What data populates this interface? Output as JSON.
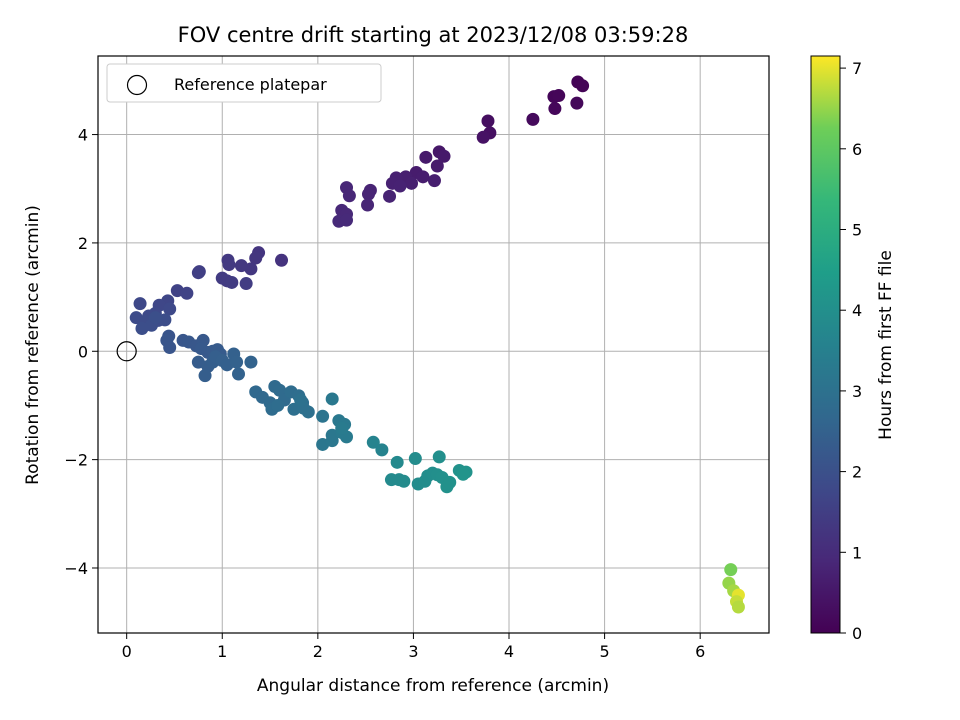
{
  "chart_data": {
    "type": "scatter",
    "title": "FOV centre drift starting at 2023/12/08 03:59:28",
    "xlabel": "Angular distance from reference (arcmin)",
    "ylabel": "Rotation from reference (arcmin)",
    "xlim": [
      -0.3,
      6.72
    ],
    "ylim": [
      -5.2,
      5.45
    ],
    "xticks": [
      0,
      1,
      2,
      3,
      4,
      5,
      6
    ],
    "yticks": [
      -4,
      -2,
      0,
      2,
      4
    ],
    "grid": true,
    "legend": {
      "placement": "top-left",
      "entries": [
        "Reference platepar"
      ]
    },
    "reference_point": {
      "x": 0,
      "y": 0,
      "marker": "open-circle"
    },
    "colorbar": {
      "label": "Hours from first FF file",
      "colormap": "viridis",
      "range": [
        0,
        7.15
      ],
      "ticks": [
        0,
        1,
        2,
        3,
        4,
        5,
        6,
        7
      ]
    },
    "points": [
      {
        "x": 4.72,
        "y": 4.97,
        "c": 0.05
      },
      {
        "x": 4.77,
        "y": 4.9,
        "c": 0.06
      },
      {
        "x": 4.47,
        "y": 4.7,
        "c": 0.1
      },
      {
        "x": 4.52,
        "y": 4.72,
        "c": 0.12
      },
      {
        "x": 4.48,
        "y": 4.48,
        "c": 0.14
      },
      {
        "x": 4.71,
        "y": 4.58,
        "c": 0.15
      },
      {
        "x": 4.25,
        "y": 4.28,
        "c": 0.2
      },
      {
        "x": 3.78,
        "y": 4.25,
        "c": 0.3
      },
      {
        "x": 3.8,
        "y": 4.03,
        "c": 0.35
      },
      {
        "x": 3.73,
        "y": 3.95,
        "c": 0.4
      },
      {
        "x": 3.27,
        "y": 3.68,
        "c": 0.5
      },
      {
        "x": 3.32,
        "y": 3.6,
        "c": 0.55
      },
      {
        "x": 3.13,
        "y": 3.58,
        "c": 0.58
      },
      {
        "x": 3.25,
        "y": 3.42,
        "c": 0.6
      },
      {
        "x": 3.03,
        "y": 3.3,
        "c": 0.62
      },
      {
        "x": 3.1,
        "y": 3.22,
        "c": 0.64
      },
      {
        "x": 3.22,
        "y": 3.15,
        "c": 0.66
      },
      {
        "x": 2.92,
        "y": 3.22,
        "c": 0.68
      },
      {
        "x": 2.98,
        "y": 3.1,
        "c": 0.7
      },
      {
        "x": 2.82,
        "y": 3.2,
        "c": 0.72
      },
      {
        "x": 2.78,
        "y": 3.1,
        "c": 0.74
      },
      {
        "x": 2.86,
        "y": 3.05,
        "c": 0.76
      },
      {
        "x": 2.75,
        "y": 2.86,
        "c": 0.78
      },
      {
        "x": 2.55,
        "y": 2.97,
        "c": 0.8
      },
      {
        "x": 2.53,
        "y": 2.9,
        "c": 0.82
      },
      {
        "x": 2.52,
        "y": 2.7,
        "c": 0.84
      },
      {
        "x": 2.3,
        "y": 3.02,
        "c": 0.86
      },
      {
        "x": 2.33,
        "y": 2.87,
        "c": 0.88
      },
      {
        "x": 2.25,
        "y": 2.6,
        "c": 0.9
      },
      {
        "x": 2.3,
        "y": 2.53,
        "c": 0.92
      },
      {
        "x": 2.22,
        "y": 2.4,
        "c": 0.94
      },
      {
        "x": 2.3,
        "y": 2.42,
        "c": 0.96
      },
      {
        "x": 1.62,
        "y": 1.68,
        "c": 1.2
      },
      {
        "x": 1.38,
        "y": 1.82,
        "c": 1.25
      },
      {
        "x": 1.35,
        "y": 1.72,
        "c": 1.28
      },
      {
        "x": 1.3,
        "y": 1.52,
        "c": 1.3
      },
      {
        "x": 1.2,
        "y": 1.58,
        "c": 1.33
      },
      {
        "x": 1.06,
        "y": 1.68,
        "c": 1.35
      },
      {
        "x": 1.07,
        "y": 1.6,
        "c": 1.37
      },
      {
        "x": 1.0,
        "y": 1.35,
        "c": 1.4
      },
      {
        "x": 1.05,
        "y": 1.3,
        "c": 1.42
      },
      {
        "x": 1.1,
        "y": 1.27,
        "c": 1.44
      },
      {
        "x": 1.25,
        "y": 1.25,
        "c": 1.46
      },
      {
        "x": 0.76,
        "y": 1.47,
        "c": 1.5
      },
      {
        "x": 0.75,
        "y": 1.45,
        "c": 1.52
      },
      {
        "x": 0.53,
        "y": 1.12,
        "c": 1.6
      },
      {
        "x": 0.63,
        "y": 1.07,
        "c": 1.62
      },
      {
        "x": 0.43,
        "y": 0.93,
        "c": 1.7
      },
      {
        "x": 0.34,
        "y": 0.85,
        "c": 1.72
      },
      {
        "x": 0.14,
        "y": 0.88,
        "c": 1.75
      },
      {
        "x": 0.45,
        "y": 0.78,
        "c": 1.78
      },
      {
        "x": 0.3,
        "y": 0.7,
        "c": 1.8
      },
      {
        "x": 0.23,
        "y": 0.65,
        "c": 1.82
      },
      {
        "x": 0.1,
        "y": 0.62,
        "c": 1.84
      },
      {
        "x": 0.2,
        "y": 0.55,
        "c": 1.86
      },
      {
        "x": 0.33,
        "y": 0.57,
        "c": 1.88
      },
      {
        "x": 0.4,
        "y": 0.58,
        "c": 1.9
      },
      {
        "x": 0.26,
        "y": 0.48,
        "c": 1.92
      },
      {
        "x": 0.16,
        "y": 0.42,
        "c": 1.94
      },
      {
        "x": 0.3,
        "y": 0.62,
        "c": 1.96
      },
      {
        "x": 0.44,
        "y": 0.28,
        "c": 2.1
      },
      {
        "x": 0.42,
        "y": 0.2,
        "c": 2.12
      },
      {
        "x": 0.45,
        "y": 0.07,
        "c": 2.14
      },
      {
        "x": 0.59,
        "y": 0.2,
        "c": 2.16
      },
      {
        "x": 0.65,
        "y": 0.17,
        "c": 2.18
      },
      {
        "x": 0.73,
        "y": 0.1,
        "c": 2.2
      },
      {
        "x": 0.8,
        "y": 0.2,
        "c": 2.22
      },
      {
        "x": 0.78,
        "y": 0.05,
        "c": 2.24
      },
      {
        "x": 0.85,
        "y": -0.02,
        "c": 2.26
      },
      {
        "x": 0.9,
        "y": 0.0,
        "c": 2.28
      },
      {
        "x": 0.95,
        "y": 0.03,
        "c": 2.3
      },
      {
        "x": 0.98,
        "y": -0.05,
        "c": 2.32
      },
      {
        "x": 0.75,
        "y": -0.2,
        "c": 2.34
      },
      {
        "x": 0.85,
        "y": -0.28,
        "c": 2.36
      },
      {
        "x": 0.9,
        "y": -0.2,
        "c": 2.38
      },
      {
        "x": 0.82,
        "y": -0.45,
        "c": 2.4
      },
      {
        "x": 0.93,
        "y": -0.1,
        "c": 2.42
      },
      {
        "x": 1.0,
        "y": -0.17,
        "c": 2.44
      },
      {
        "x": 1.05,
        "y": -0.25,
        "c": 2.46
      },
      {
        "x": 1.12,
        "y": -0.05,
        "c": 2.48
      },
      {
        "x": 1.15,
        "y": -0.2,
        "c": 2.5
      },
      {
        "x": 1.17,
        "y": -0.42,
        "c": 2.52
      },
      {
        "x": 1.3,
        "y": -0.2,
        "c": 2.54
      },
      {
        "x": 1.35,
        "y": -0.75,
        "c": 2.7
      },
      {
        "x": 1.42,
        "y": -0.85,
        "c": 2.72
      },
      {
        "x": 1.5,
        "y": -0.95,
        "c": 2.74
      },
      {
        "x": 1.55,
        "y": -0.65,
        "c": 2.76
      },
      {
        "x": 1.6,
        "y": -0.72,
        "c": 2.78
      },
      {
        "x": 1.65,
        "y": -0.9,
        "c": 2.8
      },
      {
        "x": 1.52,
        "y": -1.07,
        "c": 2.82
      },
      {
        "x": 1.58,
        "y": -1.0,
        "c": 2.84
      },
      {
        "x": 1.72,
        "y": -0.75,
        "c": 2.86
      },
      {
        "x": 1.8,
        "y": -0.82,
        "c": 2.88
      },
      {
        "x": 1.84,
        "y": -0.95,
        "c": 2.9
      },
      {
        "x": 1.75,
        "y": -1.07,
        "c": 2.92
      },
      {
        "x": 1.85,
        "y": -1.05,
        "c": 2.94
      },
      {
        "x": 1.9,
        "y": -1.12,
        "c": 2.96
      },
      {
        "x": 1.82,
        "y": -0.9,
        "c": 2.98
      },
      {
        "x": 2.05,
        "y": -1.2,
        "c": 3.1
      },
      {
        "x": 2.05,
        "y": -1.72,
        "c": 3.15
      },
      {
        "x": 2.15,
        "y": -1.65,
        "c": 3.18
      },
      {
        "x": 2.15,
        "y": -1.55,
        "c": 3.2
      },
      {
        "x": 2.15,
        "y": -0.88,
        "c": 3.22
      },
      {
        "x": 2.22,
        "y": -1.28,
        "c": 3.24
      },
      {
        "x": 2.25,
        "y": -1.5,
        "c": 3.26
      },
      {
        "x": 2.28,
        "y": -1.35,
        "c": 3.28
      },
      {
        "x": 2.3,
        "y": -1.58,
        "c": 3.3
      },
      {
        "x": 2.25,
        "y": -1.42,
        "c": 3.32
      },
      {
        "x": 2.58,
        "y": -1.68,
        "c": 3.6
      },
      {
        "x": 2.67,
        "y": -1.82,
        "c": 3.62
      },
      {
        "x": 2.83,
        "y": -2.05,
        "c": 3.8
      },
      {
        "x": 2.77,
        "y": -2.37,
        "c": 3.82
      },
      {
        "x": 2.85,
        "y": -2.37,
        "c": 3.84
      },
      {
        "x": 2.9,
        "y": -2.4,
        "c": 3.86
      },
      {
        "x": 3.02,
        "y": -1.98,
        "c": 3.88
      },
      {
        "x": 3.05,
        "y": -2.45,
        "c": 3.9
      },
      {
        "x": 3.12,
        "y": -2.4,
        "c": 3.92
      },
      {
        "x": 3.15,
        "y": -2.3,
        "c": 3.94
      },
      {
        "x": 3.2,
        "y": -2.25,
        "c": 3.96
      },
      {
        "x": 3.27,
        "y": -1.95,
        "c": 3.98
      },
      {
        "x": 3.25,
        "y": -2.28,
        "c": 4.0
      },
      {
        "x": 3.3,
        "y": -2.33,
        "c": 4.02
      },
      {
        "x": 3.35,
        "y": -2.5,
        "c": 4.04
      },
      {
        "x": 3.38,
        "y": -2.42,
        "c": 4.06
      },
      {
        "x": 3.48,
        "y": -2.2,
        "c": 4.1
      },
      {
        "x": 3.55,
        "y": -2.23,
        "c": 4.12
      },
      {
        "x": 3.52,
        "y": -2.27,
        "c": 4.14
      },
      {
        "x": 6.32,
        "y": -4.03,
        "c": 6.3
      },
      {
        "x": 6.3,
        "y": -4.28,
        "c": 6.5
      },
      {
        "x": 6.35,
        "y": -4.42,
        "c": 6.6
      },
      {
        "x": 6.4,
        "y": -4.5,
        "c": 7.0
      },
      {
        "x": 6.38,
        "y": -4.62,
        "c": 6.8
      },
      {
        "x": 6.4,
        "y": -4.72,
        "c": 6.7
      }
    ]
  }
}
